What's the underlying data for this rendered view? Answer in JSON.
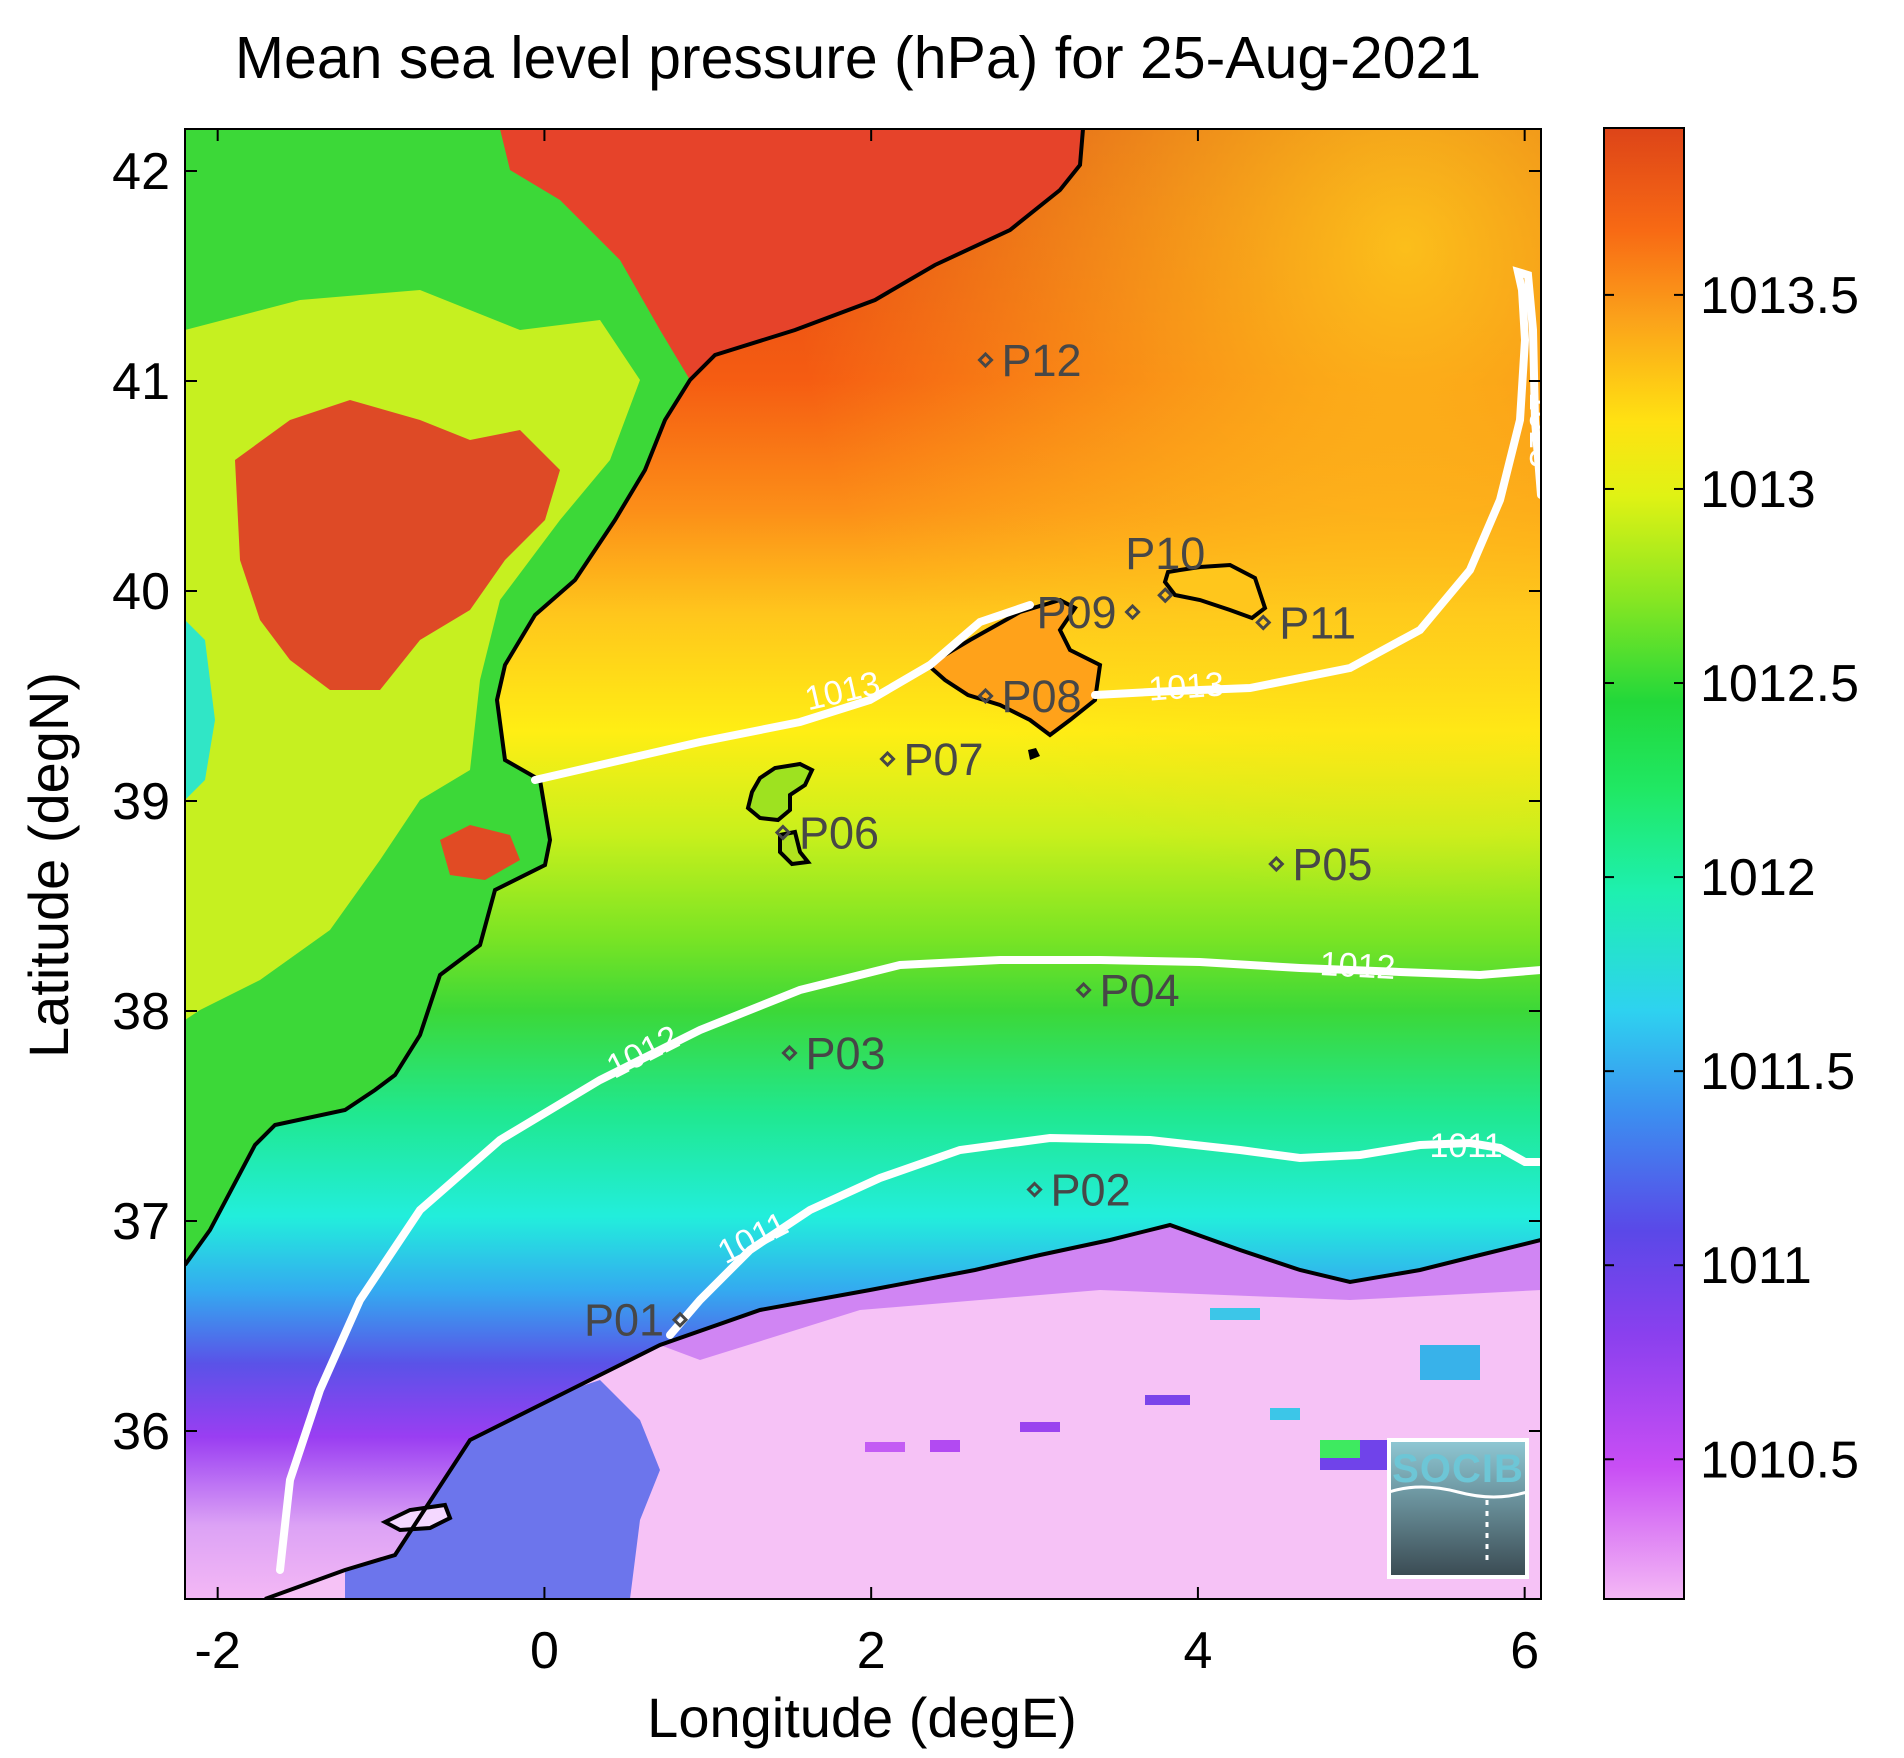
{
  "title": "Mean sea level pressure (hPa) for 25-Aug-2021",
  "axes": {
    "xlabel": "Longitude (degE)",
    "ylabel": "Latitude (degN)",
    "xlim": [
      -2.2,
      6.1
    ],
    "ylim": [
      35.2,
      42.2
    ],
    "xticks": [
      -2,
      0,
      2,
      4,
      6
    ],
    "yticks": [
      36,
      37,
      38,
      39,
      40,
      41,
      42
    ]
  },
  "colorbar": {
    "min": 1010.14,
    "max": 1013.93,
    "ticks": [
      1010.5,
      1011,
      1011.5,
      1012,
      1012.5,
      1013,
      1013.5
    ],
    "tick_labels": [
      "1010.5",
      "1011",
      "1011.5",
      "1012",
      "1012.5",
      "1013",
      "1013.5"
    ],
    "colors": [
      "#f4b8f5",
      "#c13ff4",
      "#7043ea",
      "#3c7ff0",
      "#2edcf0",
      "#1ef0a0",
      "#22d83c",
      "#a8ee1e",
      "#ffff12",
      "#ffb21a",
      "#fa6614",
      "#dd4418"
    ]
  },
  "contour_labels": [
    {
      "value": "1013",
      "lon": 1.65,
      "lat": 39.45
    },
    {
      "value": "1013",
      "lon": 3.85,
      "lat": 39.47
    },
    {
      "value": "1013",
      "lon": 5.92,
      "lat": 40.8
    },
    {
      "value": "1012",
      "lon": 0.5,
      "lat": 37.85
    },
    {
      "value": "1012",
      "lon": 4.75,
      "lat": 38.15
    },
    {
      "value": "1011",
      "lon": 1.1,
      "lat": 36.85
    },
    {
      "value": "1011",
      "lon": 5.5,
      "lat": 37.38
    }
  ],
  "stations": [
    {
      "name": "P01",
      "lon": 0.83,
      "lat": 36.53,
      "label_side": "left"
    },
    {
      "name": "P02",
      "lon": 3.0,
      "lat": 37.15,
      "label_side": "right"
    },
    {
      "name": "P03",
      "lon": 1.5,
      "lat": 37.8,
      "label_side": "right"
    },
    {
      "name": "P04",
      "lon": 3.3,
      "lat": 38.1,
      "label_side": "right"
    },
    {
      "name": "P05",
      "lon": 4.48,
      "lat": 38.7,
      "label_side": "right"
    },
    {
      "name": "P06",
      "lon": 1.46,
      "lat": 38.85,
      "label_side": "right"
    },
    {
      "name": "P07",
      "lon": 2.1,
      "lat": 39.2,
      "label_side": "right"
    },
    {
      "name": "P08",
      "lon": 2.7,
      "lat": 39.5,
      "label_side": "right"
    },
    {
      "name": "P09",
      "lon": 3.6,
      "lat": 39.9,
      "label_side": "left"
    },
    {
      "name": "P10",
      "lon": 3.8,
      "lat": 39.98,
      "label_side": "top"
    },
    {
      "name": "P11",
      "lon": 4.4,
      "lat": 39.85,
      "label_side": "right"
    },
    {
      "name": "P12",
      "lon": 2.7,
      "lat": 41.1,
      "label_side": "right"
    }
  ],
  "logo": {
    "text": "SOCIB"
  }
}
